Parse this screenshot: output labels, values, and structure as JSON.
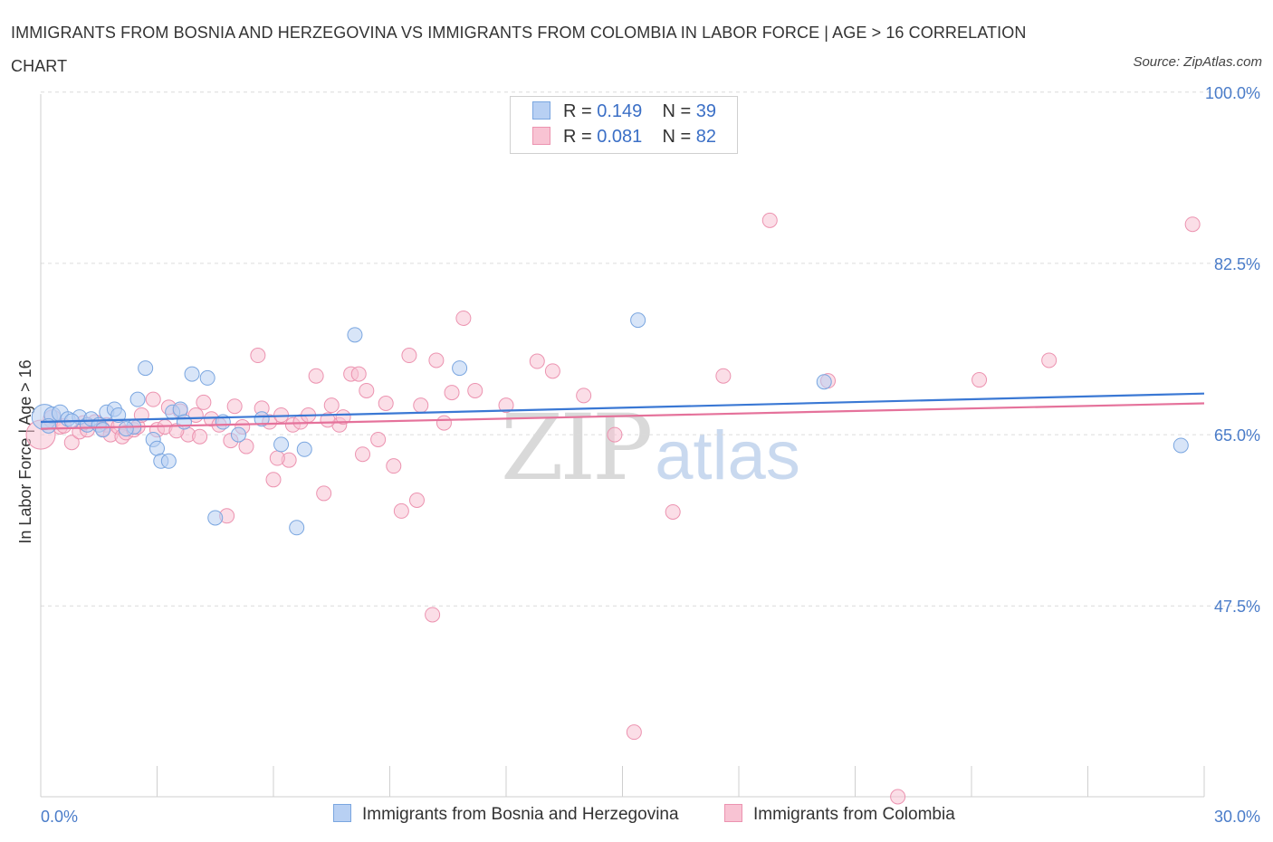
{
  "title": "IMMIGRANTS FROM BOSNIA AND HERZEGOVINA VS IMMIGRANTS FROM COLOMBIA IN LABOR FORCE | AGE > 16 CORRELATION CHART",
  "source": "Source: ZipAtlas.com",
  "watermark": {
    "zip": "ZIP",
    "atlas": "atlas"
  },
  "legend": {
    "rows": [
      {
        "r_label": "R = ",
        "r_value": "0.149",
        "n_label": "N = ",
        "n_value": "39"
      },
      {
        "r_label": "R = ",
        "r_value": "0.081",
        "n_label": "N = ",
        "n_value": "82"
      }
    ]
  },
  "bottom_legend": {
    "series1": "Immigrants from Bosnia and Herzegovina",
    "series2": "Immigrants from Colombia"
  },
  "colors": {
    "blue_fill": "#b8d0f3",
    "blue_stroke": "#7aa6e0",
    "blue_line": "#3a78d4",
    "pink_fill": "#f8c3d3",
    "pink_stroke": "#ec93b0",
    "pink_line": "#e5729b",
    "tick_text": "#4a7cc9"
  },
  "chart_data": {
    "type": "scatter",
    "title": "IMMIGRANTS FROM BOSNIA AND HERZEGOVINA VS IMMIGRANTS FROM COLOMBIA IN LABOR FORCE | AGE > 16 CORRELATION CHART",
    "xlabel": "",
    "ylabel": "In Labor Force | Age > 16",
    "xlim": [
      0,
      30
    ],
    "ylim": [
      28,
      98.5
    ],
    "x_tick_labels": [
      "0.0%",
      "30.0%"
    ],
    "y_ticks": [
      100,
      82.5,
      65,
      47.5
    ],
    "y_tick_labels": [
      "100.0%",
      "82.5%",
      "65.0%",
      "47.5%"
    ],
    "grid": "horizontal dashed",
    "legend_position": "top-center",
    "series": [
      {
        "name": "Immigrants from Bosnia and Herzegovina",
        "R": 0.149,
        "N": 39,
        "trend": {
          "x": [
            0,
            30
          ],
          "y": [
            66.3,
            69.2
          ]
        },
        "points": [
          [
            0.1,
            66.8,
            14
          ],
          [
            0.3,
            67.0,
            9
          ],
          [
            0.5,
            67.2,
            9
          ],
          [
            0.7,
            66.6,
            8
          ],
          [
            1.0,
            66.8,
            8
          ],
          [
            1.2,
            66.0,
            8
          ],
          [
            1.3,
            66.6,
            8
          ],
          [
            1.5,
            66.0,
            8
          ],
          [
            1.7,
            67.3,
            8
          ],
          [
            1.9,
            67.6,
            8
          ],
          [
            2.0,
            67.0,
            8
          ],
          [
            2.4,
            65.8,
            8
          ],
          [
            2.5,
            68.6,
            8
          ],
          [
            2.7,
            71.8,
            8
          ],
          [
            2.9,
            64.5,
            8
          ],
          [
            3.0,
            63.6,
            8
          ],
          [
            3.1,
            62.3,
            8
          ],
          [
            3.3,
            62.3,
            8
          ],
          [
            3.4,
            67.3,
            8
          ],
          [
            3.6,
            67.6,
            8
          ],
          [
            3.7,
            66.3,
            8
          ],
          [
            3.9,
            71.2,
            8
          ],
          [
            4.3,
            70.8,
            8
          ],
          [
            4.5,
            56.5,
            8
          ],
          [
            4.7,
            66.3,
            8
          ],
          [
            5.1,
            65.0,
            8
          ],
          [
            5.7,
            66.6,
            8
          ],
          [
            6.2,
            64.0,
            8
          ],
          [
            6.6,
            55.5,
            8
          ],
          [
            6.8,
            63.5,
            8
          ],
          [
            8.1,
            75.2,
            8
          ],
          [
            10.8,
            71.8,
            8
          ],
          [
            15.4,
            76.7,
            8
          ],
          [
            20.2,
            70.4,
            8
          ],
          [
            29.4,
            63.9,
            8
          ],
          [
            0.2,
            65.9,
            8
          ],
          [
            0.8,
            66.4,
            8
          ],
          [
            2.2,
            65.6,
            8
          ],
          [
            1.6,
            65.5,
            8
          ]
        ]
      },
      {
        "name": "Immigrants from Colombia",
        "R": 0.081,
        "N": 82,
        "trend": {
          "x": [
            0,
            30
          ],
          "y": [
            65.6,
            68.2
          ]
        },
        "points": [
          [
            0.0,
            65.0,
            16
          ],
          [
            0.3,
            66.6,
            10
          ],
          [
            0.5,
            65.8,
            8
          ],
          [
            0.8,
            64.2,
            8
          ],
          [
            1.0,
            65.3,
            8
          ],
          [
            1.2,
            65.5,
            8
          ],
          [
            1.4,
            66.3,
            8
          ],
          [
            1.6,
            65.6,
            8
          ],
          [
            1.7,
            66.0,
            8
          ],
          [
            1.8,
            65.0,
            8
          ],
          [
            2.0,
            65.8,
            8
          ],
          [
            2.1,
            64.8,
            8
          ],
          [
            2.2,
            65.2,
            8
          ],
          [
            2.4,
            65.5,
            8
          ],
          [
            2.5,
            65.8,
            8
          ],
          [
            2.6,
            67.0,
            8
          ],
          [
            2.9,
            68.6,
            8
          ],
          [
            3.0,
            65.5,
            8
          ],
          [
            3.2,
            65.8,
            8
          ],
          [
            3.3,
            67.8,
            8
          ],
          [
            3.6,
            67.4,
            8
          ],
          [
            3.8,
            65.0,
            8
          ],
          [
            4.0,
            67.0,
            8
          ],
          [
            4.1,
            64.8,
            8
          ],
          [
            4.2,
            68.3,
            8
          ],
          [
            4.4,
            66.6,
            8
          ],
          [
            4.6,
            66.0,
            8
          ],
          [
            4.8,
            56.7,
            8
          ],
          [
            5.0,
            67.9,
            8
          ],
          [
            5.2,
            65.8,
            8
          ],
          [
            5.3,
            63.8,
            8
          ],
          [
            5.6,
            73.1,
            8
          ],
          [
            5.7,
            67.7,
            8
          ],
          [
            5.9,
            66.3,
            8
          ],
          [
            6.0,
            60.4,
            8
          ],
          [
            6.2,
            67.0,
            8
          ],
          [
            6.4,
            62.4,
            8
          ],
          [
            6.5,
            66.0,
            8
          ],
          [
            6.7,
            66.3,
            8
          ],
          [
            6.9,
            67.0,
            8
          ],
          [
            7.1,
            71.0,
            8
          ],
          [
            7.3,
            59.0,
            8
          ],
          [
            7.5,
            68.0,
            8
          ],
          [
            7.7,
            66.0,
            8
          ],
          [
            7.8,
            66.8,
            8
          ],
          [
            8.0,
            71.2,
            8
          ],
          [
            8.2,
            71.2,
            8
          ],
          [
            8.3,
            63.0,
            8
          ],
          [
            8.4,
            69.5,
            8
          ],
          [
            8.7,
            64.5,
            8
          ],
          [
            8.9,
            68.2,
            8
          ],
          [
            9.1,
            61.8,
            8
          ],
          [
            9.3,
            57.2,
            8
          ],
          [
            9.5,
            73.1,
            8
          ],
          [
            9.7,
            58.3,
            8
          ],
          [
            9.8,
            68.0,
            8
          ],
          [
            10.2,
            72.6,
            8
          ],
          [
            10.4,
            66.2,
            8
          ],
          [
            10.6,
            69.3,
            8
          ],
          [
            10.9,
            76.9,
            8
          ],
          [
            11.2,
            69.5,
            8
          ],
          [
            12.0,
            68.0,
            8
          ],
          [
            12.8,
            72.5,
            8
          ],
          [
            13.2,
            71.5,
            8
          ],
          [
            14.0,
            69.0,
            8
          ],
          [
            14.8,
            65.0,
            8
          ],
          [
            15.3,
            34.6,
            8
          ],
          [
            16.3,
            57.1,
            8
          ],
          [
            17.6,
            71.0,
            8
          ],
          [
            18.8,
            86.9,
            8
          ],
          [
            20.3,
            70.5,
            8
          ],
          [
            24.2,
            70.6,
            8
          ],
          [
            26.0,
            72.6,
            8
          ],
          [
            29.7,
            86.5,
            8
          ],
          [
            10.1,
            46.6,
            8
          ],
          [
            22.1,
            28.0,
            8
          ],
          [
            0.6,
            65.9,
            8
          ],
          [
            1.1,
            66.2,
            8
          ],
          [
            3.5,
            65.4,
            8
          ],
          [
            4.9,
            64.4,
            8
          ],
          [
            7.4,
            66.5,
            8
          ],
          [
            6.1,
            62.6,
            8
          ]
        ]
      }
    ]
  }
}
